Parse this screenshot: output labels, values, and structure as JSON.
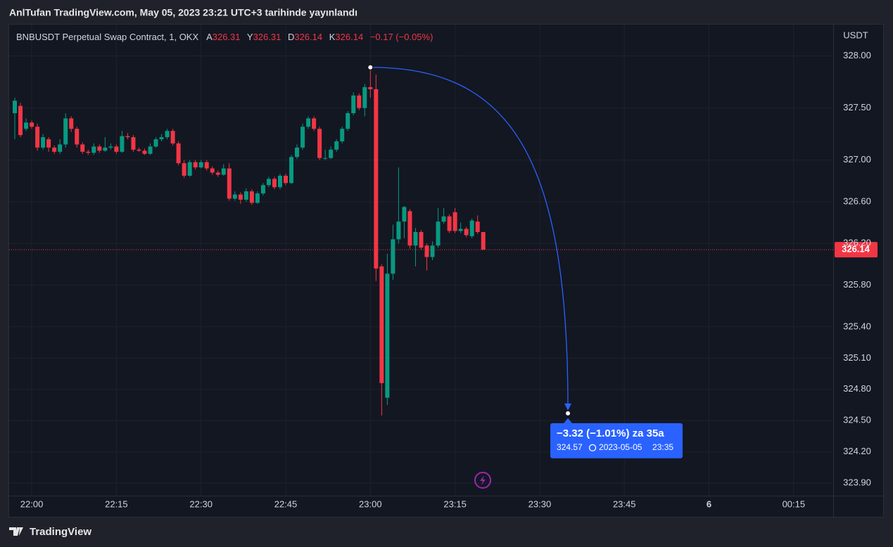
{
  "header": {
    "title": "AnlTufan TradingView.com, May 05, 2023 23:21 UTC+3 tarihinde yayınlandı"
  },
  "footer": {
    "brand": "TradingView"
  },
  "chart_data": {
    "type": "candlestick",
    "symbol": "BNBUSDT Perpetual Swap Contract, 1, OKX",
    "ohlc_labels": [
      "A",
      "Y",
      "D",
      "K"
    ],
    "change": "−0.17 (−0.05%)",
    "currency": "USDT",
    "up_color": "#089981",
    "down_color": "#f23645",
    "grid": true,
    "xlim": [
      "21:56",
      "00:22"
    ],
    "ylim": [
      323.78,
      328.3
    ],
    "yticks": [
      {
        "value": 328,
        "label": "328.00"
      },
      {
        "value": 327.5,
        "label": "327.50"
      },
      {
        "value": 327,
        "label": "327.00"
      },
      {
        "value": 326.6,
        "label": "326.60"
      },
      {
        "value": 326.2,
        "label": "326.20"
      },
      {
        "value": 325.8,
        "label": "325.80"
      },
      {
        "value": 325.4,
        "label": "325.40"
      },
      {
        "value": 325.1,
        "label": "325.10"
      },
      {
        "value": 324.8,
        "label": "324.80"
      },
      {
        "value": 324.5,
        "label": "324.50"
      },
      {
        "value": 324.2,
        "label": "324.20"
      },
      {
        "value": 323.9,
        "label": "323.90"
      }
    ],
    "xticks": [
      "22:00",
      "22:15",
      "22:30",
      "22:45",
      "23:00",
      "23:15",
      "23:30",
      "23:45",
      {
        "value": "00:00",
        "label": "6"
      },
      "00:15"
    ],
    "x": [
      "21:57",
      "21:58",
      "21:59",
      "22:00",
      "22:01",
      "22:02",
      "22:03",
      "22:04",
      "22:05",
      "22:06",
      "22:07",
      "22:08",
      "22:09",
      "22:10",
      "22:11",
      "22:12",
      "22:13",
      "22:14",
      "22:15",
      "22:16",
      "22:17",
      "22:18",
      "22:19",
      "22:20",
      "22:21",
      "22:22",
      "22:23",
      "22:24",
      "22:25",
      "22:26",
      "22:27",
      "22:28",
      "22:29",
      "22:30",
      "22:31",
      "22:32",
      "22:33",
      "22:34",
      "22:35",
      "22:36",
      "22:37",
      "22:38",
      "22:39",
      "22:40",
      "22:41",
      "22:42",
      "22:43",
      "22:44",
      "22:45",
      "22:46",
      "22:47",
      "22:48",
      "22:49",
      "22:50",
      "22:51",
      "22:52",
      "22:53",
      "22:54",
      "22:55",
      "22:56",
      "22:57",
      "22:58",
      "22:59",
      "23:00",
      "23:01",
      "23:02",
      "23:03",
      "23:04",
      "23:05",
      "23:06",
      "23:07",
      "23:08",
      "23:09",
      "23:10",
      "23:11",
      "23:12",
      "23:13",
      "23:14",
      "23:15",
      "23:16",
      "23:17",
      "23:18",
      "23:19",
      "23:20"
    ],
    "ohlc": [
      [
        327.45,
        327.6,
        327.2,
        327.57
      ],
      [
        327.52,
        327.55,
        327.22,
        327.24
      ],
      [
        327.3,
        327.4,
        327.28,
        327.36
      ],
      [
        327.36,
        327.38,
        327.3,
        327.32
      ],
      [
        327.32,
        327.35,
        327.09,
        327.12
      ],
      [
        327.12,
        327.25,
        327.1,
        327.22
      ],
      [
        327.2,
        327.22,
        327.08,
        327.12
      ],
      [
        327.12,
        327.14,
        327.06,
        327.08
      ],
      [
        327.08,
        327.2,
        327.06,
        327.15
      ],
      [
        327.15,
        327.45,
        327.12,
        327.4
      ],
      [
        327.4,
        327.42,
        327.27,
        327.3
      ],
      [
        327.3,
        327.32,
        327.12,
        327.15
      ],
      [
        327.15,
        327.17,
        327.06,
        327.08
      ],
      [
        327.08,
        327.1,
        327.05,
        327.07
      ],
      [
        327.07,
        327.16,
        327.05,
        327.13
      ],
      [
        327.13,
        327.15,
        327.07,
        327.09
      ],
      [
        327.09,
        327.22,
        327.08,
        327.12
      ],
      [
        327.12,
        327.16,
        327.1,
        327.13
      ],
      [
        327.13,
        327.15,
        327.06,
        327.08
      ],
      [
        327.08,
        327.28,
        327.07,
        327.23
      ],
      [
        327.23,
        327.26,
        327.2,
        327.22
      ],
      [
        327.22,
        327.24,
        327.08,
        327.1
      ],
      [
        327.1,
        327.12,
        327.08,
        327.09
      ],
      [
        327.09,
        327.11,
        327.05,
        327.06
      ],
      [
        327.06,
        327.16,
        327.05,
        327.13
      ],
      [
        327.13,
        327.22,
        327.12,
        327.2
      ],
      [
        327.2,
        327.25,
        327.18,
        327.22
      ],
      [
        327.22,
        327.3,
        327.2,
        327.28
      ],
      [
        327.28,
        327.3,
        327.14,
        327.16
      ],
      [
        327.16,
        327.18,
        326.95,
        326.97
      ],
      [
        326.97,
        327.0,
        326.83,
        326.85
      ],
      [
        326.85,
        327.0,
        326.84,
        326.98
      ],
      [
        326.98,
        327.0,
        326.91,
        326.93
      ],
      [
        326.93,
        327.0,
        326.92,
        326.98
      ],
      [
        326.98,
        327.0,
        326.9,
        326.92
      ],
      [
        326.92,
        326.94,
        326.86,
        326.88
      ],
      [
        326.88,
        326.9,
        326.84,
        326.86
      ],
      [
        326.86,
        326.96,
        326.85,
        326.92
      ],
      [
        326.92,
        326.97,
        326.61,
        326.63
      ],
      [
        326.63,
        326.7,
        326.61,
        326.67
      ],
      [
        326.67,
        326.69,
        326.58,
        326.62
      ],
      [
        326.62,
        326.73,
        326.6,
        326.7
      ],
      [
        326.7,
        326.72,
        326.57,
        326.59
      ],
      [
        326.59,
        326.7,
        326.58,
        326.68
      ],
      [
        326.68,
        326.78,
        326.66,
        326.76
      ],
      [
        326.76,
        326.84,
        326.74,
        326.82
      ],
      [
        326.82,
        326.84,
        326.72,
        326.74
      ],
      [
        326.74,
        326.87,
        326.72,
        326.85
      ],
      [
        326.85,
        326.87,
        326.76,
        326.78
      ],
      [
        326.78,
        327.05,
        326.77,
        327.03
      ],
      [
        327.03,
        327.15,
        327.01,
        327.12
      ],
      [
        327.12,
        327.35,
        327.1,
        327.32
      ],
      [
        327.32,
        327.42,
        327.3,
        327.4
      ],
      [
        327.4,
        327.42,
        327.28,
        327.3
      ],
      [
        327.3,
        327.32,
        327.0,
        327.02
      ],
      [
        327.02,
        327.1,
        327.0,
        327.02
      ],
      [
        327.02,
        327.13,
        327.01,
        327.1
      ],
      [
        327.1,
        327.2,
        327.08,
        327.18
      ],
      [
        327.18,
        327.32,
        327.16,
        327.3
      ],
      [
        327.3,
        327.47,
        327.28,
        327.45
      ],
      [
        327.45,
        327.65,
        327.43,
        327.62
      ],
      [
        327.62,
        327.64,
        327.48,
        327.5
      ],
      [
        327.5,
        327.73,
        327.42,
        327.7
      ],
      [
        327.7,
        327.89,
        327.6,
        327.68
      ],
      [
        327.68,
        327.82,
        325.84,
        325.96
      ],
      [
        325.98,
        326.0,
        324.55,
        324.86
      ],
      [
        324.72,
        326.1,
        324.65,
        325.91
      ],
      [
        325.91,
        326.38,
        325.85,
        326.24
      ],
      [
        326.24,
        326.93,
        326.2,
        326.41
      ],
      [
        326.41,
        326.56,
        326.25,
        326.55
      ],
      [
        326.51,
        326.53,
        326.15,
        326.18
      ],
      [
        326.18,
        326.35,
        325.98,
        326.31
      ],
      [
        326.31,
        326.33,
        326.14,
        326.16
      ],
      [
        326.18,
        326.2,
        325.94,
        326.07
      ],
      [
        326.07,
        326.22,
        326.04,
        326.18
      ],
      [
        326.18,
        326.54,
        326.16,
        326.41
      ],
      [
        326.41,
        326.54,
        326.39,
        326.46
      ],
      [
        326.46,
        326.48,
        326.3,
        326.32
      ],
      [
        326.5,
        326.54,
        326.3,
        326.32
      ],
      [
        326.32,
        326.4,
        326.3,
        326.34
      ],
      [
        326.34,
        326.36,
        326.26,
        326.28
      ],
      [
        326.27,
        326.44,
        326.25,
        326.42
      ],
      [
        326.41,
        326.47,
        326.29,
        326.31
      ],
      [
        326.31,
        326.31,
        326.14,
        326.14
      ]
    ],
    "annotation": {
      "color": "#2962ff",
      "start": {
        "x": "23:00",
        "y": 327.89
      },
      "end": {
        "x": "23:35",
        "y": 324.57
      },
      "text": "−3.32 (−1.01%) za 35a",
      "date": "2023-05-05"
    }
  }
}
